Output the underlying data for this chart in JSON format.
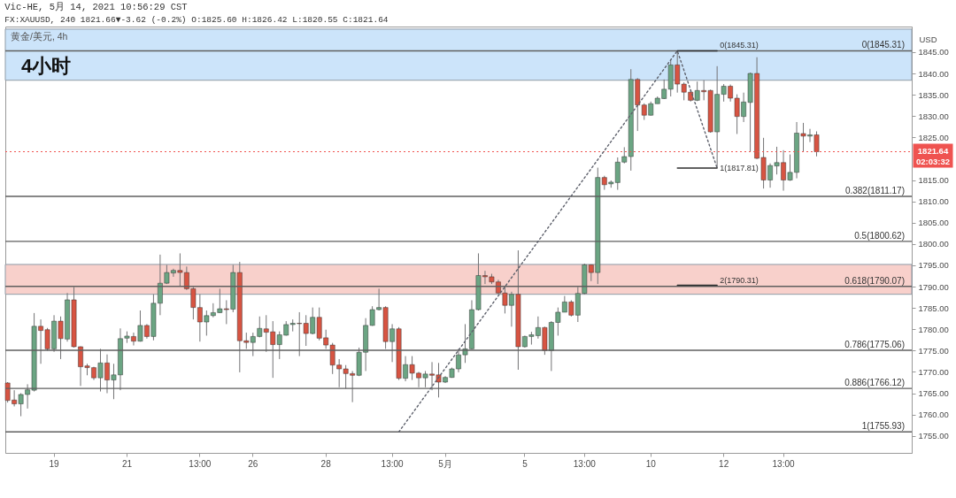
{
  "chart_data": {
    "type": "candlestick",
    "title": "Vic-HE, 5月 14, 2021 10:56:29 CST",
    "subtitle": "FX:XAUUSD, 240 1821.66▼-3.62 (-0.2%) O:1825.60 H:1826.42 L:1820.55 C:1821.64",
    "ylabel": "USD",
    "categories": [
      null,
      null,
      null,
      null,
      null,
      null,
      null,
      "19",
      null,
      null,
      null,
      null,
      null,
      null,
      null,
      null,
      null,
      null,
      "21",
      null,
      null,
      null,
      null,
      null,
      null,
      null,
      null,
      null,
      null,
      "13:00",
      null,
      null,
      null,
      null,
      null,
      null,
      null,
      "26",
      null,
      null,
      null,
      null,
      null,
      null,
      null,
      null,
      null,
      null,
      "28",
      null,
      null,
      null,
      null,
      null,
      null,
      null,
      null,
      null,
      "13:00",
      null,
      null,
      null,
      null,
      null,
      null,
      null,
      "5月",
      null,
      null,
      null,
      null,
      null,
      null,
      null,
      null,
      null,
      null,
      null,
      "5",
      null,
      null,
      null,
      null,
      null,
      null,
      null,
      null,
      "13:00",
      null,
      null,
      null,
      null,
      null,
      null,
      null,
      null,
      null,
      "10",
      null,
      null,
      null,
      null,
      null,
      null,
      null,
      null,
      null,
      null,
      "12",
      null,
      null,
      null,
      null,
      null,
      null,
      null,
      null,
      "13:00",
      null,
      null,
      null,
      null,
      null,
      null,
      null,
      null,
      null,
      null,
      null,
      null,
      null,
      null,
      null,
      null,
      null,
      null,
      null
    ],
    "ohlc": [
      [
        1767.4,
        1767.6,
        1762.8,
        1763.3
      ],
      [
        1763.4,
        1765.7,
        1761.9,
        1762.5
      ],
      [
        1762.5,
        1765.0,
        1759.6,
        1764.7
      ],
      [
        1764.7,
        1767.1,
        1761.4,
        1765.8
      ],
      [
        1765.7,
        1783.8,
        1765.4,
        1780.7
      ],
      [
        1780.7,
        1782.3,
        1771.9,
        1779.7
      ],
      [
        1779.9,
        1780.3,
        1775.0,
        1775.4
      ],
      [
        1775.4,
        1783.3,
        1774.7,
        1781.9
      ],
      [
        1781.9,
        1783.0,
        1773.0,
        1777.8
      ],
      [
        1777.7,
        1788.5,
        1777.1,
        1786.9
      ],
      [
        1786.9,
        1789.9,
        1775.7,
        1775.9
      ],
      [
        1775.9,
        1776.0,
        1766.7,
        1771.2
      ],
      [
        1771.4,
        1771.9,
        1769.2,
        1771.0
      ],
      [
        1771.0,
        1771.2,
        1768.1,
        1768.6
      ],
      [
        1768.6,
        1775.4,
        1765.4,
        1772.1
      ],
      [
        1772.1,
        1774.1,
        1765.0,
        1768.1
      ],
      [
        1768.1,
        1771.9,
        1763.6,
        1769.3
      ],
      [
        1769.3,
        1780.2,
        1765.7,
        1777.8
      ],
      [
        1777.9,
        1779.5,
        1776.8,
        1778.4
      ],
      [
        1778.3,
        1779.2,
        1776.2,
        1777.2
      ],
      [
        1777.2,
        1784.4,
        1777.1,
        1780.9
      ],
      [
        1780.9,
        1781.2,
        1777.8,
        1778.3
      ],
      [
        1778.3,
        1788.2,
        1777.4,
        1786.1
      ],
      [
        1786.1,
        1797.5,
        1783.3,
        1790.8
      ],
      [
        1790.8,
        1795.1,
        1790.6,
        1793.3
      ],
      [
        1793.2,
        1794.2,
        1792.3,
        1793.8
      ],
      [
        1793.8,
        1797.8,
        1790.2,
        1793.3
      ],
      [
        1793.3,
        1794.7,
        1789.2,
        1789.5
      ],
      [
        1789.5,
        1789.9,
        1782.3,
        1785.1
      ],
      [
        1785.1,
        1788.2,
        1777.1,
        1781.7
      ],
      [
        1781.7,
        1784.4,
        1778.5,
        1783.2
      ],
      [
        1783.2,
        1786.1,
        1782.8,
        1783.9
      ],
      [
        1783.9,
        1789.5,
        1783.8,
        1784.8
      ],
      [
        1784.8,
        1786.8,
        1781.2,
        1784.6
      ],
      [
        1784.7,
        1795.1,
        1784.0,
        1793.3
      ],
      [
        1793.3,
        1795.8,
        1769.9,
        1777.3
      ],
      [
        1777.3,
        1779.2,
        1775.4,
        1776.9
      ],
      [
        1776.9,
        1779.2,
        1773.7,
        1778.3
      ],
      [
        1778.3,
        1783.0,
        1778.1,
        1780.2
      ],
      [
        1780.1,
        1783.3,
        1774.7,
        1779.3
      ],
      [
        1779.4,
        1781.9,
        1768.6,
        1776.4
      ],
      [
        1776.4,
        1779.5,
        1773.0,
        1778.7
      ],
      [
        1778.6,
        1781.9,
        1778.5,
        1781.1
      ],
      [
        1781.1,
        1782.3,
        1779.5,
        1781.4
      ],
      [
        1781.4,
        1784.0,
        1773.7,
        1781.3
      ],
      [
        1781.4,
        1783.3,
        1776.1,
        1779.0
      ],
      [
        1779.0,
        1785.1,
        1778.8,
        1782.8
      ],
      [
        1782.8,
        1785.1,
        1777.4,
        1777.9
      ],
      [
        1778.0,
        1779.9,
        1775.4,
        1776.3
      ],
      [
        1776.3,
        1776.8,
        1769.5,
        1771.6
      ],
      [
        1771.6,
        1773.0,
        1766.4,
        1770.7
      ],
      [
        1770.7,
        1771.6,
        1766.1,
        1769.6
      ],
      [
        1769.6,
        1770.2,
        1762.9,
        1769.2
      ],
      [
        1769.2,
        1775.7,
        1769.0,
        1774.6
      ],
      [
        1774.6,
        1782.6,
        1770.2,
        1780.9
      ],
      [
        1780.9,
        1785.4,
        1780.8,
        1784.6
      ],
      [
        1784.6,
        1789.5,
        1784.4,
        1785.1
      ],
      [
        1785.1,
        1785.4,
        1775.4,
        1777.1
      ],
      [
        1777.1,
        1781.2,
        1772.3,
        1780.1
      ],
      [
        1780.1,
        1780.5,
        1768.1,
        1768.5
      ],
      [
        1768.5,
        1773.7,
        1767.8,
        1771.7
      ],
      [
        1771.7,
        1773.7,
        1768.1,
        1769.7
      ],
      [
        1769.7,
        1770.0,
        1766.4,
        1768.6
      ],
      [
        1768.6,
        1770.2,
        1766.4,
        1769.5
      ],
      [
        1769.5,
        1772.3,
        1765.7,
        1769.2
      ],
      [
        1769.3,
        1772.1,
        1764.0,
        1767.6
      ],
      [
        1767.6,
        1769.0,
        1767.4,
        1768.7
      ],
      [
        1768.7,
        1771.0,
        1768.6,
        1770.7
      ],
      [
        1770.7,
        1775.4,
        1769.9,
        1774.0
      ],
      [
        1774.0,
        1781.2,
        1772.1,
        1775.4
      ],
      [
        1775.4,
        1786.8,
        1775.3,
        1784.6
      ],
      [
        1784.6,
        1797.8,
        1784.4,
        1792.6
      ],
      [
        1792.6,
        1793.7,
        1790.6,
        1792.3
      ],
      [
        1792.3,
        1793.0,
        1790.6,
        1791.1
      ],
      [
        1791.1,
        1791.6,
        1788.2,
        1788.5
      ],
      [
        1788.5,
        1790.2,
        1783.7,
        1785.6
      ],
      [
        1785.6,
        1788.8,
        1780.6,
        1788.2
      ],
      [
        1788.2,
        1798.5,
        1770.5,
        1775.9
      ],
      [
        1775.9,
        1778.5,
        1775.7,
        1778.3
      ],
      [
        1778.3,
        1779.4,
        1776.4,
        1778.7
      ],
      [
        1778.5,
        1783.0,
        1777.8,
        1780.4
      ],
      [
        1780.4,
        1780.6,
        1774.0,
        1775.0
      ],
      [
        1775.0,
        1781.9,
        1770.2,
        1781.6
      ],
      [
        1781.6,
        1785.1,
        1778.5,
        1784.0
      ],
      [
        1784.0,
        1787.8,
        1784.0,
        1786.4
      ],
      [
        1786.4,
        1786.8,
        1783.0,
        1783.3
      ],
      [
        1783.3,
        1789.9,
        1781.7,
        1788.4
      ],
      [
        1788.4,
        1795.4,
        1788.2,
        1795.1
      ],
      [
        1795.1,
        1795.2,
        1791.3,
        1793.3
      ],
      [
        1793.3,
        1817.9,
        1790.6,
        1815.6
      ],
      [
        1815.6,
        1816.0,
        1812.7,
        1813.9
      ],
      [
        1814.1,
        1814.9,
        1813.2,
        1814.5
      ],
      [
        1814.4,
        1820.3,
        1812.7,
        1819.2
      ],
      [
        1819.2,
        1822.7,
        1818.9,
        1820.5
      ],
      [
        1820.5,
        1841.0,
        1817.2,
        1838.6
      ],
      [
        1838.6,
        1838.9,
        1826.5,
        1832.6
      ],
      [
        1832.6,
        1833.0,
        1829.1,
        1830.2
      ],
      [
        1830.2,
        1833.4,
        1830.1,
        1832.9
      ],
      [
        1832.9,
        1834.6,
        1832.9,
        1834.2
      ],
      [
        1834.1,
        1838.6,
        1834.0,
        1836.3
      ],
      [
        1836.3,
        1843.2,
        1834.6,
        1842.0
      ],
      [
        1842.0,
        1845.31,
        1835.5,
        1837.5
      ],
      [
        1837.5,
        1837.9,
        1833.7,
        1835.6
      ],
      [
        1835.6,
        1836.2,
        1833.4,
        1833.7
      ],
      [
        1833.7,
        1838.1,
        1833.5,
        1836.0
      ],
      [
        1836.0,
        1838.4,
        1833.7,
        1835.7
      ],
      [
        1836.0,
        1836.2,
        1826.1,
        1826.3
      ],
      [
        1826.3,
        1841.7,
        1817.81,
        1835.1
      ],
      [
        1835.1,
        1837.5,
        1833.4,
        1837.0
      ],
      [
        1837.0,
        1837.4,
        1833.4,
        1834.2
      ],
      [
        1834.2,
        1835.1,
        1825.8,
        1829.9
      ],
      [
        1829.9,
        1835.5,
        1828.6,
        1833.3
      ],
      [
        1833.2,
        1840.2,
        1821.7,
        1840.0
      ],
      [
        1840.0,
        1843.8,
        1819.9,
        1820.1
      ],
      [
        1820.3,
        1824.9,
        1813.0,
        1815.0
      ],
      [
        1815.0,
        1818.9,
        1813.2,
        1818.4
      ],
      [
        1818.3,
        1822.8,
        1816.3,
        1819.1
      ],
      [
        1819.1,
        1822.0,
        1812.5,
        1815.0
      ],
      [
        1815.0,
        1821.0,
        1814.8,
        1816.8
      ],
      [
        1816.8,
        1828.6,
        1815.4,
        1826.0
      ],
      [
        1825.9,
        1828.4,
        1821.7,
        1825.3
      ],
      [
        1825.3,
        1827.0,
        1823.9,
        1825.6
      ],
      [
        1825.6,
        1826.42,
        1820.55,
        1821.64
      ],
      null,
      null,
      null,
      null,
      null,
      null,
      null,
      null,
      null,
      null,
      null,
      null,
      null,
      null
    ],
    "colors": [
      "#d75442",
      "#d75442",
      "#6ba583",
      "#6ba583",
      "#6ba583",
      "#d75442",
      "#d75442",
      "#6ba583",
      "#d75442",
      "#6ba583",
      "#d75442",
      "#d75442",
      "#d75442",
      "#d75442",
      "#6ba583",
      "#d75442",
      "#6ba583",
      "#6ba583",
      "#6ba583",
      "#d75442",
      "#6ba583",
      "#d75442",
      "#6ba583",
      "#6ba583",
      "#6ba583",
      "#6ba583",
      "#d75442",
      "#d75442",
      "#d75442",
      "#d75442",
      "#6ba583",
      "#6ba583",
      "#6ba583",
      "#d75442",
      "#6ba583",
      "#d75442",
      "#d75442",
      "#6ba583",
      "#6ba583",
      "#d75442",
      "#d75442",
      "#6ba583",
      "#6ba583",
      "#6ba583",
      "#d75442",
      "#d75442",
      "#6ba583",
      "#d75442",
      "#d75442",
      "#d75442",
      "#d75442",
      "#d75442",
      "#d75442",
      "#6ba583",
      "#6ba583",
      "#6ba583",
      "#6ba583",
      "#d75442",
      "#6ba583",
      "#d75442",
      "#6ba583",
      "#d75442",
      "#d75442",
      "#6ba583",
      "#d75442",
      "#d75442",
      "#6ba583",
      "#6ba583",
      "#6ba583",
      "#6ba583",
      "#6ba583",
      "#6ba583",
      "#d75442",
      "#d75442",
      "#d75442",
      "#d75442",
      "#6ba583",
      "#d75442",
      "#6ba583",
      "#6ba583",
      "#6ba583",
      "#d75442",
      "#6ba583",
      "#6ba583",
      "#6ba583",
      "#d75442",
      "#6ba583",
      "#6ba583",
      "#d75442",
      "#6ba583",
      "#d75442",
      "#6ba583",
      "#6ba583",
      "#6ba583",
      "#6ba583",
      "#d75442",
      "#d75442",
      "#6ba583",
      "#6ba583",
      "#6ba583",
      "#6ba583",
      "#d75442",
      "#d75442",
      "#d75442",
      "#6ba583",
      "#d75442",
      "#d75442",
      "#6ba583",
      "#6ba583",
      "#d75442",
      "#d75442",
      "#6ba583",
      "#6ba583",
      "#d75442",
      "#d75442",
      "#6ba583",
      "#6ba583",
      "#d75442",
      "#6ba583",
      "#6ba583",
      "#d75442",
      "#6ba583",
      "#d75442",
      null,
      null,
      null,
      null,
      null,
      null,
      null,
      null,
      null,
      null,
      null,
      null,
      null,
      null
    ],
    "series": [
      {
        "type": "line",
        "color": "#5d606b",
        "line_style": "dotted",
        "values": [
          null,
          null,
          null,
          null,
          null,
          null,
          null,
          null,
          null,
          null,
          null,
          null,
          null,
          null,
          null,
          null,
          null,
          null,
          null,
          null,
          null,
          null,
          null,
          null,
          null,
          null,
          null,
          null,
          null,
          null,
          null,
          null,
          null,
          null,
          null,
          null,
          null,
          null,
          null,
          null,
          null,
          null,
          null,
          null,
          null,
          null,
          null,
          null,
          null,
          null,
          null,
          null,
          null,
          null,
          null,
          null,
          null,
          null,
          null,
          1755.93,
          null,
          null,
          null,
          null,
          null,
          null,
          null,
          null,
          null,
          null,
          null,
          null,
          null,
          null,
          null,
          null,
          null,
          null,
          null,
          null,
          null,
          null,
          null,
          null,
          null,
          null,
          null,
          null,
          null,
          null,
          null,
          null,
          null,
          null,
          null,
          null,
          null,
          null,
          null,
          null,
          null,
          1845.31,
          null,
          null,
          null,
          null,
          null,
          1817.81,
          null,
          null,
          null,
          null,
          null,
          null,
          null,
          null,
          null,
          null,
          null,
          null,
          null,
          null,
          null,
          null,
          null,
          null,
          null,
          null,
          null,
          null,
          null,
          null,
          null,
          null,
          null,
          null,
          null
        ]
      },
      {
        "type": "line",
        "name": "0(1845.31)",
        "color": "#2e2e2e",
        "line_style": "solid",
        "values": [
          null,
          null,
          null,
          null,
          null,
          null,
          null,
          null,
          null,
          null,
          null,
          null,
          null,
          null,
          null,
          null,
          null,
          null,
          null,
          null,
          null,
          null,
          null,
          null,
          null,
          null,
          null,
          null,
          null,
          null,
          null,
          null,
          null,
          null,
          null,
          null,
          null,
          null,
          null,
          null,
          null,
          null,
          null,
          null,
          null,
          null,
          null,
          null,
          null,
          null,
          null,
          null,
          null,
          null,
          null,
          null,
          null,
          null,
          null,
          null,
          null,
          null,
          null,
          null,
          null,
          null,
          null,
          null,
          null,
          null,
          null,
          null,
          null,
          null,
          null,
          null,
          null,
          null,
          null,
          null,
          null,
          null,
          null,
          null,
          null,
          null,
          null,
          null,
          null,
          null,
          null,
          null,
          null,
          null,
          null,
          null,
          null,
          null,
          null,
          null,
          null,
          1845.31,
          1845.31,
          1845.31,
          1845.31,
          1845.31,
          1845.31,
          1845.31,
          null,
          null,
          null,
          null,
          null,
          null,
          null,
          null,
          null,
          null,
          null,
          null,
          null,
          null,
          null,
          null,
          null,
          null,
          null,
          null,
          null,
          null,
          null,
          null,
          null,
          null,
          null,
          null,
          null
        ]
      },
      {
        "type": "line",
        "name": "1(1817.81)",
        "color": "#2e2e2e",
        "line_style": "solid",
        "values": [
          null,
          null,
          null,
          null,
          null,
          null,
          null,
          null,
          null,
          null,
          null,
          null,
          null,
          null,
          null,
          null,
          null,
          null,
          null,
          null,
          null,
          null,
          null,
          null,
          null,
          null,
          null,
          null,
          null,
          null,
          null,
          null,
          null,
          null,
          null,
          null,
          null,
          null,
          null,
          null,
          null,
          null,
          null,
          null,
          null,
          null,
          null,
          null,
          null,
          null,
          null,
          null,
          null,
          null,
          null,
          null,
          null,
          null,
          null,
          null,
          null,
          null,
          null,
          null,
          null,
          null,
          null,
          null,
          null,
          null,
          null,
          null,
          null,
          null,
          null,
          null,
          null,
          null,
          null,
          null,
          null,
          null,
          null,
          null,
          null,
          null,
          null,
          null,
          null,
          null,
          null,
          null,
          null,
          null,
          null,
          null,
          null,
          null,
          null,
          null,
          null,
          1817.81,
          1817.81,
          1817.81,
          1817.81,
          1817.81,
          1817.81,
          1817.81,
          null,
          null,
          null,
          null,
          null,
          null,
          null,
          null,
          null,
          null,
          null,
          null,
          null,
          null,
          null,
          null,
          null,
          null,
          null,
          null,
          null,
          null,
          null,
          null,
          null,
          null,
          null,
          null,
          null
        ]
      },
      {
        "type": "line",
        "name": "2(1790.31)",
        "color": "#2e2e2e",
        "line_style": "solid",
        "values": [
          null,
          null,
          null,
          null,
          null,
          null,
          null,
          null,
          null,
          null,
          null,
          null,
          null,
          null,
          null,
          null,
          null,
          null,
          null,
          null,
          null,
          null,
          null,
          null,
          null,
          null,
          null,
          null,
          null,
          null,
          null,
          null,
          null,
          null,
          null,
          null,
          null,
          null,
          null,
          null,
          null,
          null,
          null,
          null,
          null,
          null,
          null,
          null,
          null,
          null,
          null,
          null,
          null,
          null,
          null,
          null,
          null,
          null,
          null,
          null,
          null,
          null,
          null,
          null,
          null,
          null,
          null,
          null,
          null,
          null,
          null,
          null,
          null,
          null,
          null,
          null,
          null,
          null,
          null,
          null,
          null,
          null,
          null,
          null,
          null,
          null,
          null,
          null,
          null,
          null,
          null,
          null,
          null,
          null,
          null,
          null,
          null,
          null,
          null,
          null,
          null,
          1790.31,
          1790.31,
          1790.31,
          1790.31,
          1790.31,
          1790.31,
          1790.31,
          null,
          null,
          null,
          null,
          null,
          null,
          null,
          null,
          null,
          null,
          null,
          null,
          null,
          null,
          null,
          null,
          null,
          null,
          null,
          null,
          null,
          null,
          null,
          null,
          null,
          null,
          null,
          null,
          null
        ]
      }
    ],
    "ref_lines": [
      {
        "axis": "y",
        "value": 1845.31,
        "label": "0(1845.31)",
        "color": "#5f5f5f",
        "line_style": "solid"
      },
      {
        "axis": "y",
        "value": 1811.17,
        "label": "0.382(1811.17)",
        "color": "#5f5f5f",
        "line_style": "solid"
      },
      {
        "axis": "y",
        "value": 1800.62,
        "label": "0.5(1800.62)",
        "color": "#5f5f5f",
        "line_style": "solid"
      },
      {
        "axis": "y",
        "value": 1790.07,
        "label": "0.618(1790.07)",
        "color": "#5f5f5f",
        "line_style": "solid"
      },
      {
        "axis": "y",
        "value": 1775.06,
        "label": "0.786(1775.06)",
        "color": "#5f5f5f",
        "line_style": "solid"
      },
      {
        "axis": "y",
        "value": 1766.12,
        "label": "0.886(1766.12)",
        "color": "#5f5f5f",
        "line_style": "solid"
      },
      {
        "axis": "y",
        "value": 1755.93,
        "label": "1(1755.93)",
        "color": "#5f5f5f",
        "line_style": "solid"
      },
      {
        "axis": "y",
        "value": 1821.64,
        "label": "1821.64\n02:03:32",
        "color": "#ef5350",
        "line_style": "dotted"
      }
    ],
    "bands": [
      {
        "axis": "y",
        "from": 1838.4,
        "to": 1850.4,
        "label": "4小时",
        "color": "#cce4fa"
      },
      {
        "axis": "y",
        "from": 1788.2,
        "to": 1795.2,
        "color": "#f8d0cb"
      }
    ],
    "annotations": [
      "黄金/美元, 4h"
    ],
    "ylim": [
      1751,
      1851
    ],
    "yticks": [
      {
        "value": 1755,
        "label": "1755.00"
      },
      {
        "value": 1760,
        "label": "1760.00"
      },
      {
        "value": 1765,
        "label": "1765.00"
      },
      {
        "value": 1770,
        "label": "1770.00"
      },
      {
        "value": 1775,
        "label": "1775.00"
      },
      {
        "value": 1780,
        "label": "1780.00"
      },
      {
        "value": 1785,
        "label": "1785.00"
      },
      {
        "value": 1790,
        "label": "1790.00"
      },
      {
        "value": 1795,
        "label": "1795.00"
      },
      {
        "value": 1800,
        "label": "1800.00"
      },
      {
        "value": 1805,
        "label": "1805.00"
      },
      {
        "value": 1810,
        "label": "1810.00"
      },
      {
        "value": 1815,
        "label": "1815.00"
      },
      {
        "value": 1825,
        "label": "1825.00"
      },
      {
        "value": 1830,
        "label": "1830.00"
      },
      {
        "value": 1835,
        "label": "1835.00"
      },
      {
        "value": 1840,
        "label": "1840.00"
      },
      {
        "value": 1845,
        "label": "1845.00"
      }
    ],
    "grid": false
  }
}
